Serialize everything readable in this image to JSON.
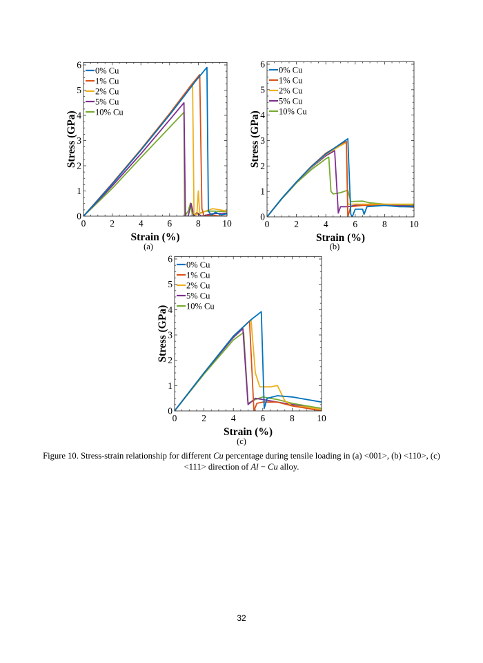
{
  "chart_data": [
    {
      "type": "line",
      "panel_label": "(a)",
      "xlabel": "Strain (%)",
      "ylabel": "Stress (GPa)",
      "xlim": [
        0,
        10
      ],
      "ylim": [
        0,
        6.1
      ],
      "xticks": [
        "0",
        "2",
        "4",
        "6",
        "8",
        "10"
      ],
      "yticks": [
        "0",
        "1",
        "2",
        "3",
        "4",
        "5",
        "6"
      ],
      "grid": false,
      "legend_position": "top-left",
      "series": [
        {
          "name": "0% Cu",
          "color": "#0072BD",
          "points": [
            [
              0,
              0
            ],
            [
              2,
              1.27
            ],
            [
              4,
              2.62
            ],
            [
              6,
              4.02
            ],
            [
              7,
              4.75
            ],
            [
              7.8,
              5.35
            ],
            [
              8.6,
              5.9
            ],
            [
              8.7,
              0.2
            ],
            [
              8.9,
              0.05
            ],
            [
              9.2,
              0.15
            ],
            [
              9.6,
              0.05
            ],
            [
              10,
              0.1
            ]
          ]
        },
        {
          "name": "1% Cu",
          "color": "#D95319",
          "points": [
            [
              0,
              0
            ],
            [
              2,
              1.3
            ],
            [
              4,
              2.65
            ],
            [
              6,
              4.07
            ],
            [
              7.5,
              5.2
            ],
            [
              8.1,
              5.62
            ],
            [
              8.25,
              0.3
            ],
            [
              8.4,
              0
            ],
            [
              9,
              0.05
            ],
            [
              9.5,
              0
            ],
            [
              10,
              0
            ]
          ]
        },
        {
          "name": "2% Cu",
          "color": "#EDB120",
          "points": [
            [
              0,
              0
            ],
            [
              2,
              1.28
            ],
            [
              4,
              2.62
            ],
            [
              6,
              4.02
            ],
            [
              7.6,
              5.2
            ],
            [
              7.7,
              0.1
            ],
            [
              7.9,
              0.05
            ],
            [
              8.0,
              1.0
            ],
            [
              8.1,
              0.1
            ],
            [
              8.5,
              0.2
            ],
            [
              9,
              0.3
            ],
            [
              9.5,
              0.25
            ],
            [
              10,
              0.2
            ]
          ]
        },
        {
          "name": "5% Cu",
          "color": "#7E2F8E",
          "points": [
            [
              0,
              0
            ],
            [
              2,
              1.2
            ],
            [
              4,
              2.47
            ],
            [
              6,
              3.82
            ],
            [
              7,
              4.5
            ],
            [
              7.1,
              0
            ],
            [
              7.3,
              0
            ],
            [
              7.5,
              0.5
            ],
            [
              7.7,
              0
            ],
            [
              7.9,
              0.15
            ],
            [
              8.2,
              0
            ],
            [
              9,
              0.1
            ],
            [
              10,
              0.12
            ]
          ]
        },
        {
          "name": "10% Cu",
          "color": "#77AC30",
          "points": [
            [
              0,
              0
            ],
            [
              2,
              1.1
            ],
            [
              4,
              2.32
            ],
            [
              6,
              3.52
            ],
            [
              7,
              4.12
            ],
            [
              7.05,
              0
            ],
            [
              7.3,
              0.2
            ],
            [
              7.45,
              0.52
            ],
            [
              7.6,
              0
            ],
            [
              8,
              0.1
            ],
            [
              8.5,
              0.2
            ],
            [
              9,
              0.2
            ],
            [
              10,
              0.18
            ]
          ]
        }
      ]
    },
    {
      "type": "line",
      "panel_label": "(b)",
      "xlabel": "Strain (%)",
      "ylabel": "Stress (GPa)",
      "xlim": [
        0,
        10
      ],
      "ylim": [
        0,
        6.1
      ],
      "xticks": [
        "0",
        "2",
        "4",
        "6",
        "8",
        "10"
      ],
      "yticks": [
        "0",
        "1",
        "2",
        "3",
        "4",
        "5",
        "6"
      ],
      "grid": false,
      "legend_position": "top-left",
      "series": [
        {
          "name": "0% Cu",
          "color": "#0072BD",
          "points": [
            [
              0,
              0
            ],
            [
              1,
              0.72
            ],
            [
              2,
              1.37
            ],
            [
              3,
              1.97
            ],
            [
              4,
              2.47
            ],
            [
              5,
              2.87
            ],
            [
              5.5,
              3.07
            ],
            [
              5.7,
              0.1
            ],
            [
              5.8,
              0
            ],
            [
              6,
              0.3
            ],
            [
              6.5,
              0.3
            ],
            [
              6.6,
              0.1
            ],
            [
              6.8,
              0.4
            ],
            [
              8,
              0.45
            ],
            [
              9,
              0.4
            ],
            [
              10,
              0.4
            ]
          ]
        },
        {
          "name": "1% Cu",
          "color": "#D95319",
          "points": [
            [
              0,
              0
            ],
            [
              1,
              0.72
            ],
            [
              2,
              1.37
            ],
            [
              3,
              1.98
            ],
            [
              4,
              2.5
            ],
            [
              5,
              2.85
            ],
            [
              5.4,
              2.97
            ],
            [
              5.5,
              0
            ],
            [
              5.7,
              0.4
            ],
            [
              6.5,
              0.45
            ],
            [
              8,
              0.45
            ],
            [
              10,
              0.38
            ]
          ]
        },
        {
          "name": "2% Cu",
          "color": "#EDB120",
          "points": [
            [
              0,
              0
            ],
            [
              1,
              0.72
            ],
            [
              2,
              1.36
            ],
            [
              3,
              1.95
            ],
            [
              4,
              2.45
            ],
            [
              5,
              2.8
            ],
            [
              5.4,
              2.92
            ],
            [
              5.5,
              0.5
            ],
            [
              6.5,
              0.5
            ],
            [
              8,
              0.5
            ],
            [
              10,
              0.5
            ]
          ]
        },
        {
          "name": "5% Cu",
          "color": "#7E2F8E",
          "points": [
            [
              0,
              0
            ],
            [
              1,
              0.72
            ],
            [
              2,
              1.36
            ],
            [
              3,
              1.93
            ],
            [
              4,
              2.4
            ],
            [
              4.6,
              2.6
            ],
            [
              4.85,
              0.15
            ],
            [
              5,
              0.4
            ],
            [
              5.5,
              0.4
            ],
            [
              6,
              0.45
            ],
            [
              7,
              0.5
            ],
            [
              8,
              0.45
            ],
            [
              10,
              0.42
            ]
          ]
        },
        {
          "name": "10% Cu",
          "color": "#77AC30",
          "points": [
            [
              0,
              0
            ],
            [
              1,
              0.7
            ],
            [
              2,
              1.33
            ],
            [
              3,
              1.85
            ],
            [
              4,
              2.28
            ],
            [
              4.2,
              2.35
            ],
            [
              4.35,
              1.0
            ],
            [
              4.5,
              0.9
            ],
            [
              5,
              0.95
            ],
            [
              5.5,
              1.05
            ],
            [
              5.7,
              0.6
            ],
            [
              6.5,
              0.62
            ],
            [
              7,
              0.55
            ],
            [
              8,
              0.5
            ],
            [
              10,
              0.45
            ]
          ]
        }
      ]
    },
    {
      "type": "line",
      "panel_label": "(c)",
      "xlabel": "Strain (%)",
      "ylabel": "Stress (GPa)",
      "xlim": [
        0,
        10
      ],
      "ylim": [
        0,
        6.1
      ],
      "xticks": [
        "0",
        "2",
        "4",
        "6",
        "8",
        "10"
      ],
      "yticks": [
        "0",
        "1",
        "2",
        "3",
        "4",
        "5",
        "6"
      ],
      "grid": false,
      "legend_position": "top-left",
      "series": [
        {
          "name": "0% Cu",
          "color": "#0072BD",
          "points": [
            [
              0,
              0
            ],
            [
              2,
              1.5
            ],
            [
              4,
              2.95
            ],
            [
              5.2,
              3.6
            ],
            [
              5.9,
              3.92
            ],
            [
              6.1,
              0.1
            ],
            [
              6.3,
              0.5
            ],
            [
              7,
              0.6
            ],
            [
              8,
              0.55
            ],
            [
              9,
              0.45
            ],
            [
              9.5,
              0.4
            ],
            [
              10,
              0.35
            ]
          ]
        },
        {
          "name": "1% Cu",
          "color": "#D95319",
          "points": [
            [
              0,
              0
            ],
            [
              2,
              1.5
            ],
            [
              4,
              2.95
            ],
            [
              5.1,
              3.55
            ],
            [
              5.4,
              0
            ],
            [
              5.6,
              0.3
            ],
            [
              6,
              0.35
            ],
            [
              7,
              0.35
            ],
            [
              8,
              0.2
            ],
            [
              9,
              0.1
            ],
            [
              10,
              0
            ]
          ]
        },
        {
          "name": "2% Cu",
          "color": "#EDB120",
          "points": [
            [
              0,
              0
            ],
            [
              2,
              1.5
            ],
            [
              4,
              2.95
            ],
            [
              5.2,
              3.6
            ],
            [
              5.5,
              1.5
            ],
            [
              5.8,
              0.95
            ],
            [
              6.5,
              0.95
            ],
            [
              7,
              1.0
            ],
            [
              7.5,
              0.4
            ],
            [
              8,
              0.2
            ],
            [
              9,
              0.15
            ],
            [
              10,
              0.05
            ]
          ]
        },
        {
          "name": "5% Cu",
          "color": "#7E2F8E",
          "points": [
            [
              0,
              0
            ],
            [
              2,
              1.5
            ],
            [
              4,
              2.9
            ],
            [
              4.65,
              3.25
            ],
            [
              5,
              0.25
            ],
            [
              5.5,
              0.5
            ],
            [
              6,
              0.45
            ],
            [
              7,
              0.35
            ],
            [
              8,
              0.25
            ],
            [
              9,
              0.15
            ],
            [
              10,
              0.05
            ]
          ]
        },
        {
          "name": "10% Cu",
          "color": "#77AC30",
          "points": [
            [
              0,
              0
            ],
            [
              2,
              1.45
            ],
            [
              4,
              2.8
            ],
            [
              4.7,
              3.1
            ],
            [
              5,
              0.3
            ],
            [
              5.5,
              0.45
            ],
            [
              6,
              0.55
            ],
            [
              7,
              0.45
            ],
            [
              8,
              0.3
            ],
            [
              9,
              0.2
            ],
            [
              10,
              0.1
            ]
          ]
        }
      ]
    }
  ],
  "caption": {
    "part1": "Figure 10. Stress-strain relationship for different ",
    "cu1": "Cu",
    "part2": " percentage during tensile loading in (a) <001>, (b) <110>, (c) <111> direction of ",
    "al": "Al",
    "minus": " − ",
    "cu2": "Cu",
    "part3": " alloy."
  },
  "page_number": "32"
}
